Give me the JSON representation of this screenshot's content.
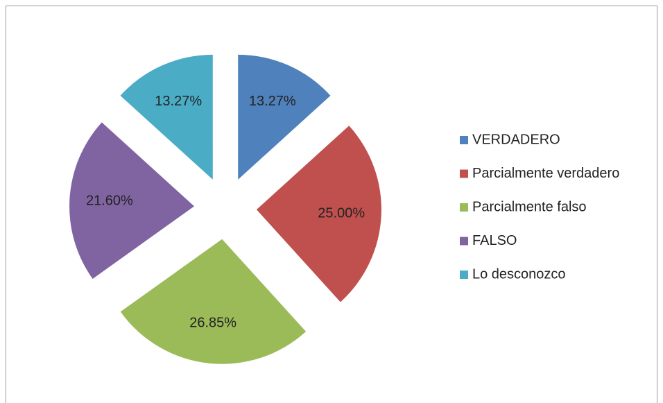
{
  "chart_data": {
    "type": "pie",
    "categories": [
      "VERDADERO",
      "Parcialmente verdadero",
      "Parcialmente falso",
      "FALSO",
      "Lo desconozco"
    ],
    "values": [
      13.27,
      25.0,
      26.85,
      21.6,
      13.27
    ],
    "value_labels": [
      "13.27%",
      "25.00%",
      "26.85%",
      "21.60%",
      "13.27%"
    ],
    "colors": [
      "#4f81bd",
      "#c0504d",
      "#9bbb59",
      "#8064a2",
      "#4bacc6"
    ],
    "legend": "right"
  }
}
